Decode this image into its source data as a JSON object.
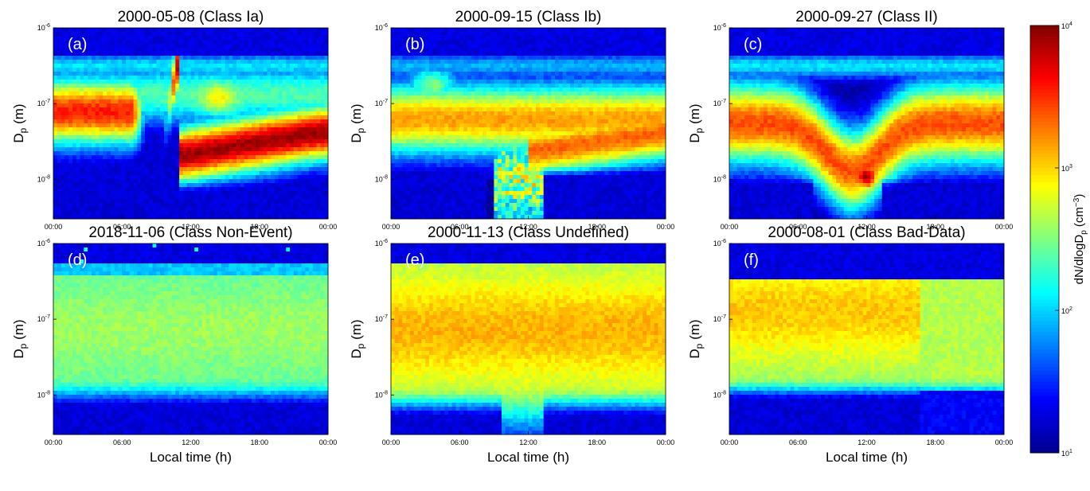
{
  "colormap": [
    "#00008f",
    "#0000ff",
    "#0080ff",
    "#00ffff",
    "#80ff80",
    "#ffff00",
    "#ff8000",
    "#ff0000",
    "#800000"
  ],
  "colorbar": {
    "label": "dN/dlogD",
    "label_subscript": "p",
    "label_unit_open": " (cm",
    "label_unit_exp": "−3",
    "label_unit_close": ")",
    "ticks": [
      {
        "base": "10",
        "exp": "1",
        "value": 10
      },
      {
        "base": "10",
        "exp": "2",
        "value": 100
      },
      {
        "base": "10",
        "exp": "3",
        "value": 1000
      },
      {
        "base": "10",
        "exp": "4",
        "value": 10000
      }
    ]
  },
  "ylabel": {
    "main": "D",
    "sub": "p",
    "unit": " (m)"
  },
  "xlabel": "Local time (h)",
  "xticks": [
    "00:00",
    "06:00",
    "12:00",
    "18:00",
    "00:00"
  ],
  "yticks": [
    {
      "base": "10",
      "exp": "-6",
      "value": 1e-06
    },
    {
      "base": "10",
      "exp": "-7",
      "value": 1e-07
    },
    {
      "base": "10",
      "exp": "-8",
      "value": 1e-08
    }
  ],
  "chart_data": [
    {
      "type": "heatmap",
      "title": "2000-05-08 (Class Ia)",
      "letter": "(a)",
      "scale": "log",
      "x_range": [
        "00:00",
        "00:00"
      ],
      "y_range": [
        3e-09,
        1e-06
      ],
      "description_profile": "ia"
    },
    {
      "type": "heatmap",
      "title": "2000-09-15 (Class Ib)",
      "letter": "(b)",
      "scale": "log",
      "x_range": [
        "00:00",
        "00:00"
      ],
      "y_range": [
        3e-09,
        1e-06
      ],
      "description_profile": "ib"
    },
    {
      "type": "heatmap",
      "title": "2000-09-27 (Class II)",
      "letter": "(c)",
      "scale": "log",
      "x_range": [
        "00:00",
        "00:00"
      ],
      "y_range": [
        3e-09,
        1e-06
      ],
      "description_profile": "ii"
    },
    {
      "type": "heatmap",
      "title": "2018-11-06 (Class Non-Event)",
      "letter": "(d)",
      "scale": "log",
      "x_range": [
        "00:00",
        "00:00"
      ],
      "y_range": [
        3e-09,
        1e-06
      ],
      "description_profile": "nonevent"
    },
    {
      "type": "heatmap",
      "title": "2000-11-13 (Class Undefined)",
      "letter": "(e)",
      "scale": "log",
      "x_range": [
        "00:00",
        "00:00"
      ],
      "y_range": [
        3e-09,
        1e-06
      ],
      "description_profile": "undefined"
    },
    {
      "type": "heatmap",
      "title": "2000-08-01 (Class Bad-Data)",
      "letter": "(f)",
      "scale": "log",
      "x_range": [
        "00:00",
        "00:00"
      ],
      "y_range": [
        3e-09,
        1e-06
      ],
      "description_profile": "baddata"
    }
  ]
}
